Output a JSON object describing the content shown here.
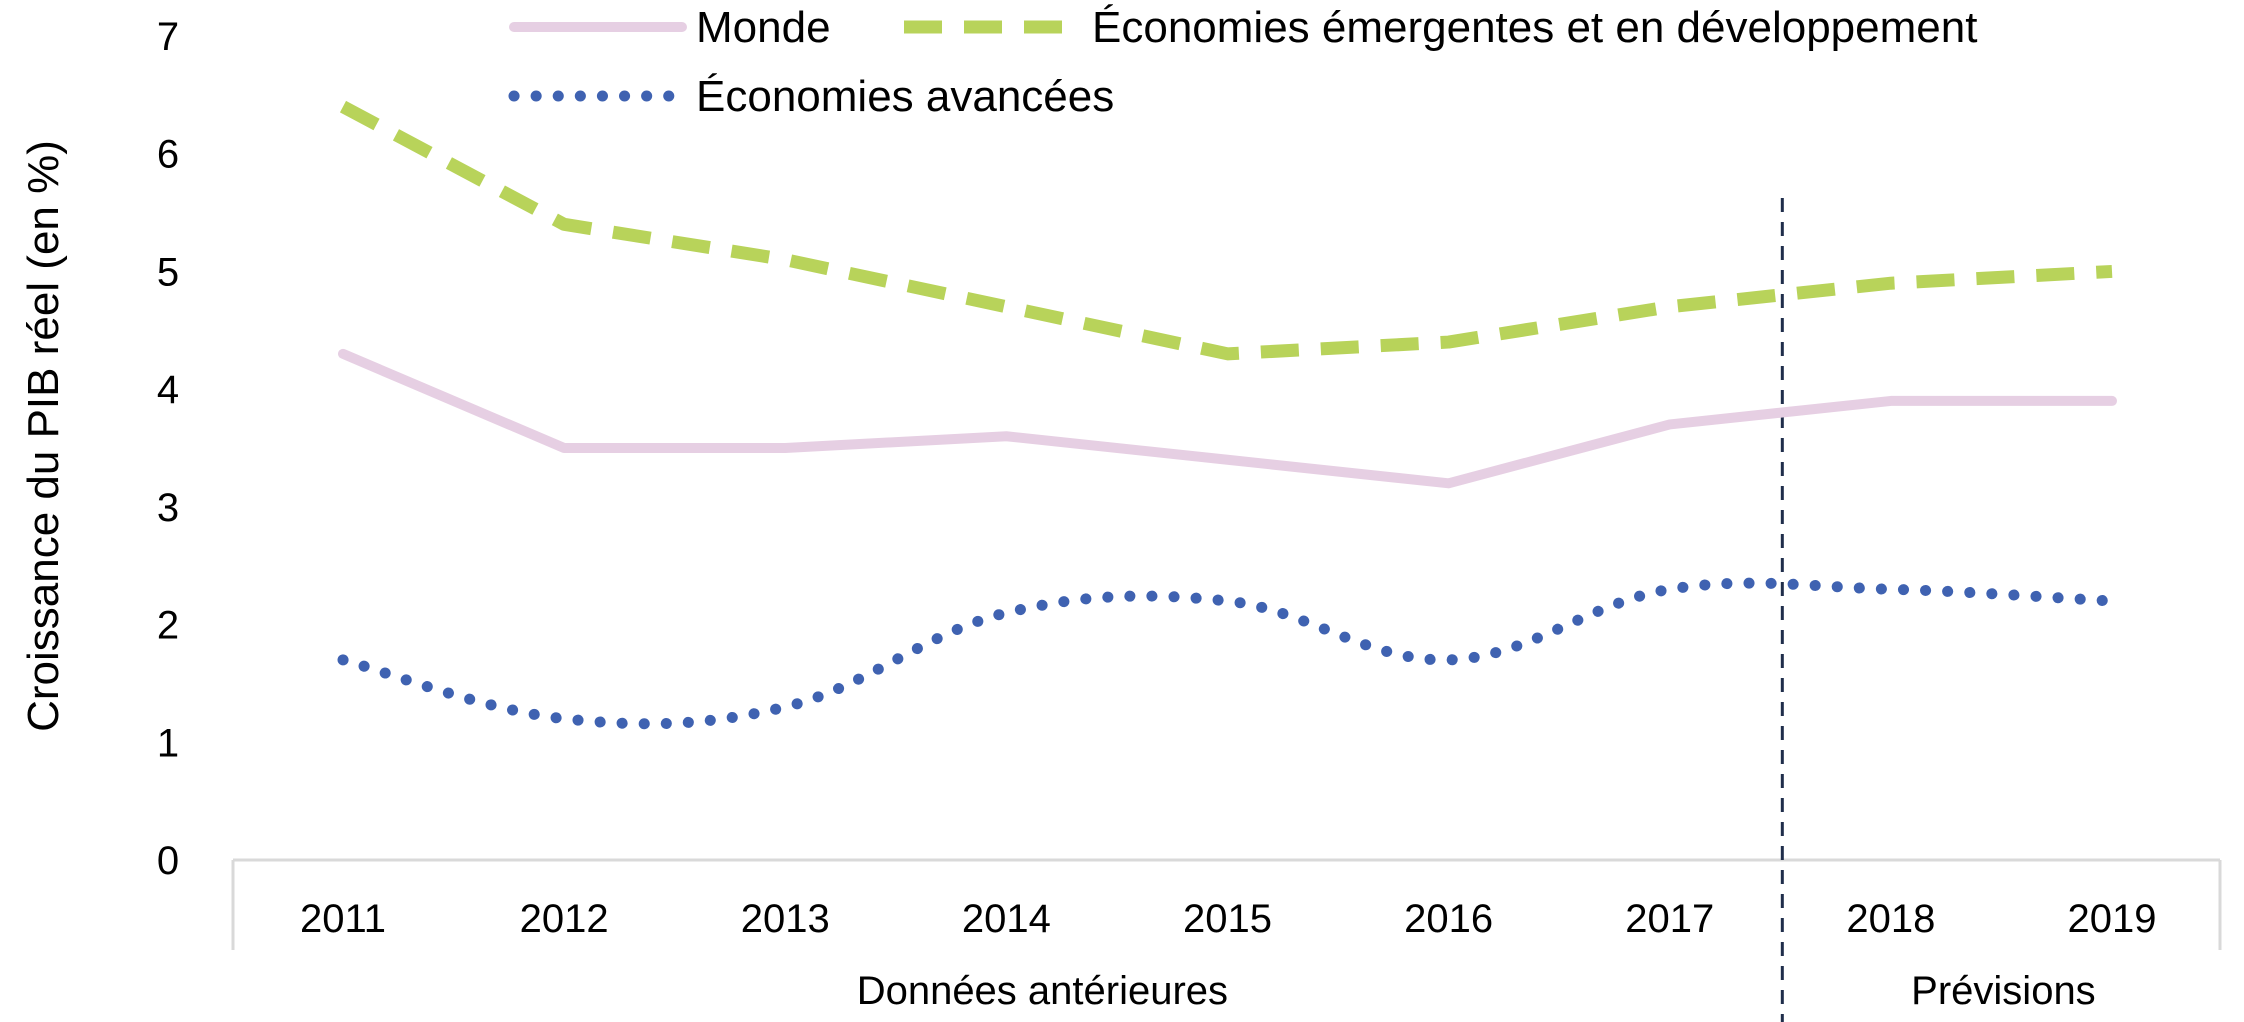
{
  "chart_data": {
    "type": "line",
    "ylabel": "Croissance du PIB réel (en %)",
    "xlabel": "",
    "title": "",
    "categories": [
      "2011",
      "2012",
      "2013",
      "2014",
      "2015",
      "2016",
      "2017",
      "2018",
      "2019"
    ],
    "ylim": [
      0,
      7
    ],
    "yticks": [
      "0",
      "1",
      "2",
      "3",
      "4",
      "5",
      "6",
      "7"
    ],
    "grid": false,
    "legend_position": "top",
    "series": [
      {
        "name": "Monde",
        "values": [
          4.3,
          3.5,
          3.5,
          3.6,
          3.4,
          3.2,
          3.7,
          3.9,
          3.9
        ],
        "color": "#e6cfe3",
        "style": "solid"
      },
      {
        "name": "Économies émergentes et en développement",
        "values": [
          6.4,
          5.4,
          5.1,
          4.7,
          4.3,
          4.4,
          4.7,
          4.9,
          5.0
        ],
        "color": "#b8d35a",
        "style": "dashed"
      },
      {
        "name": "Économies avancées",
        "values": [
          1.7,
          1.2,
          1.3,
          2.1,
          2.2,
          1.7,
          2.3,
          2.3,
          2.2
        ],
        "color": "#3f62b1",
        "style": "dotted"
      }
    ],
    "period_groups": [
      {
        "label": "Données antérieures",
        "categories": [
          "2011",
          "2012",
          "2013",
          "2014",
          "2015",
          "2016",
          "2017"
        ]
      },
      {
        "label": "Prévisions",
        "categories": [
          "2018",
          "2019"
        ]
      }
    ],
    "divider_color": "#1f2d4a"
  }
}
